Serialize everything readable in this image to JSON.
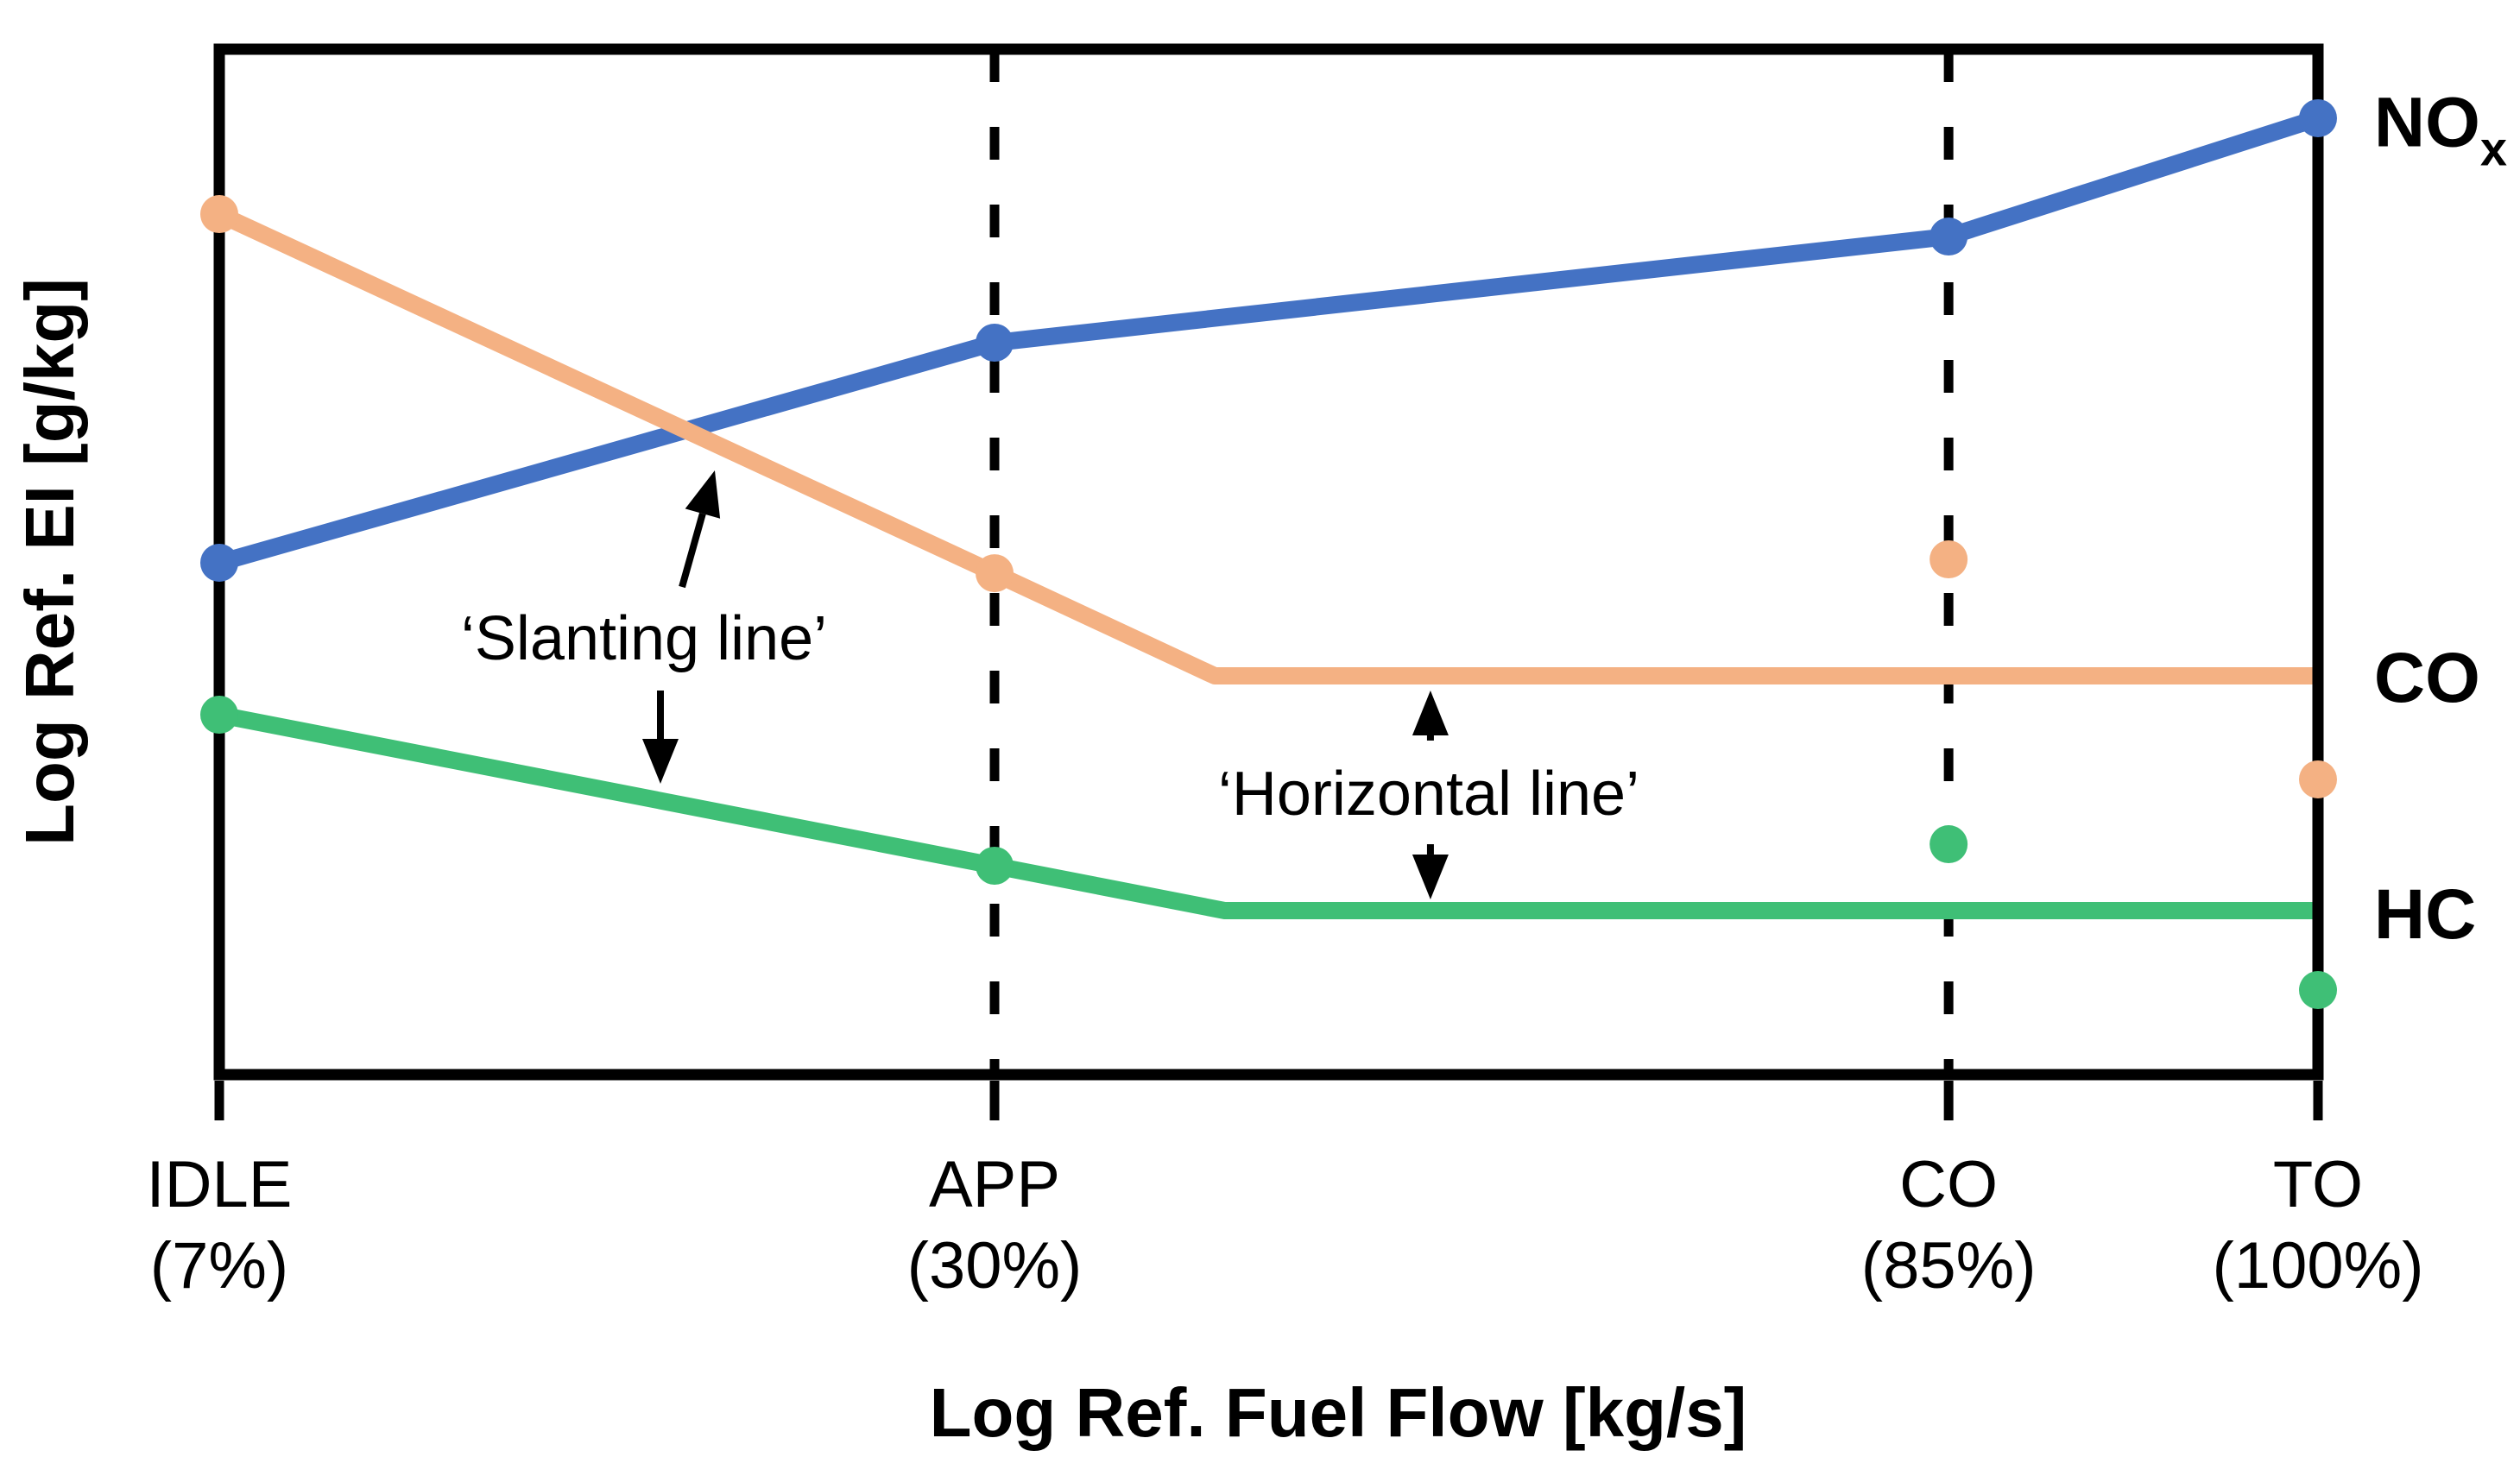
{
  "chart_data": {
    "type": "line",
    "title": "",
    "xlabel": "Log Ref. Fuel Flow [kg/s]",
    "ylabel": "Log Ref. EI [g/kg]",
    "x_axis": {
      "scale_note": "log scale, schematic engine power settings",
      "categories": [
        {
          "id": "idle",
          "line1": "IDLE",
          "line2": "(7%)",
          "x": 0.0,
          "gridline": false
        },
        {
          "id": "app",
          "line1": "APP",
          "line2": "(30%)",
          "x": 0.3694,
          "gridline": true
        },
        {
          "id": "co",
          "line1": "CO",
          "line2": "(85%)",
          "x": 0.824,
          "gridline": true
        },
        {
          "id": "to",
          "line1": "TO",
          "line2": "(100%)",
          "x": 1.0,
          "gridline": false
        }
      ]
    },
    "y_axis": {
      "scale_note": "log scale, no numeric ticks shown",
      "range": [
        0,
        1
      ],
      "grid": false
    },
    "series": [
      {
        "id": "nox",
        "label": "NO",
        "label_sub": "x",
        "color": "#4472C4",
        "line": [
          [
            0.0,
            0.4992
          ],
          [
            0.3694,
            0.7138
          ],
          [
            0.824,
            0.8173
          ],
          [
            1.0,
            0.9327
          ]
        ],
        "markers": [
          [
            0.0,
            0.4992
          ],
          [
            0.3694,
            0.7138
          ],
          [
            0.824,
            0.8173
          ],
          [
            1.0,
            0.9327
          ]
        ],
        "detached_markers": [],
        "label_anchor": {
          "x": 1.0267,
          "v": 0.9217
        }
      },
      {
        "id": "co",
        "label": "CO",
        "label_sub": "",
        "color": "#F4B183",
        "line": [
          [
            0.0,
            0.8392
          ],
          [
            0.3694,
            0.489
          ],
          [
            0.4743,
            0.3889
          ],
          [
            1.0,
            0.3889
          ]
        ],
        "markers": [
          [
            0.0,
            0.8392
          ],
          [
            0.3694,
            0.489
          ]
        ],
        "detached_markers": [
          [
            0.824,
            0.5025
          ],
          [
            1.0,
            0.2879
          ]
        ],
        "label_anchor": {
          "x": 1.0267,
          "v": 0.3864
        }
      },
      {
        "id": "hc",
        "label": "HC",
        "label_sub": "",
        "color": "#3FBF76",
        "line": [
          [
            0.0,
            0.351
          ],
          [
            0.3694,
            0.2037
          ],
          [
            0.4792,
            0.1599
          ],
          [
            1.0,
            0.1599
          ]
        ],
        "markers": [
          [
            0.0,
            0.351
          ],
          [
            0.3694,
            0.2037
          ]
        ],
        "detached_markers": [
          [
            0.824,
            0.2247
          ],
          [
            1.0,
            0.0825
          ]
        ],
        "label_anchor": {
          "x": 1.0267,
          "v": 0.1557
        }
      }
    ],
    "annotations": [
      {
        "id": "slanting-line",
        "text": "‘Slanting line’",
        "anchor": {
          "x": 0.2024,
          "v": 0.4251
        },
        "arrows": [
          {
            "from": [
              0.2205,
              0.4756
            ],
            "to": [
              0.2361,
              0.5892
            ]
          },
          {
            "from": [
              0.2102,
              0.3746
            ],
            "to": [
              0.2102,
              0.2837
            ]
          }
        ]
      },
      {
        "id": "horizontal-line",
        "text": "‘Horizontal line’",
        "anchor": {
          "x": 0.5763,
          "v": 0.2736
        },
        "arrows": [
          {
            "from": [
              0.5771,
              0.3258
            ],
            "to": [
              0.5771,
              0.3746
            ]
          },
          {
            "from": [
              0.5771,
              0.2247
            ],
            "to": [
              0.5771,
              0.1709
            ]
          }
        ]
      }
    ],
    "legend_position": "labels at right edge of lines"
  },
  "styles": {
    "frame_color": "#000000",
    "gridline_color": "#000000",
    "background": "#ffffff",
    "blue": "#4472C4",
    "orange": "#F4B183",
    "green": "#3FBF76"
  }
}
